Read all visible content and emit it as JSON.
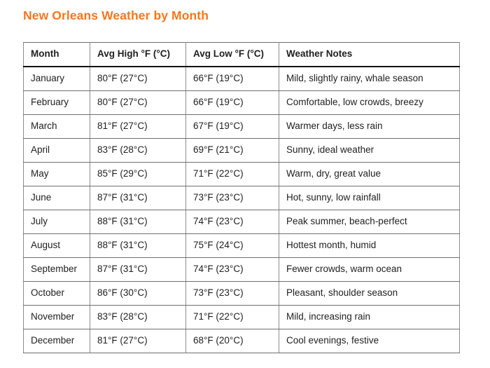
{
  "page": {
    "title": "New Orleans Weather by Month",
    "title_color": "#f8761d"
  },
  "table": {
    "headers": [
      "Month",
      "Avg High °F (°C)",
      "Avg Low °F (°C)",
      "Weather Notes"
    ],
    "rows": [
      {
        "month": "January",
        "avg_high": "80°F (27°C)",
        "avg_low": "66°F (19°C)",
        "notes": "Mild, slightly rainy, whale season"
      },
      {
        "month": "February",
        "avg_high": "80°F (27°C)",
        "avg_low": "66°F (19°C)",
        "notes": "Comfortable, low crowds, breezy"
      },
      {
        "month": "March",
        "avg_high": "81°F (27°C)",
        "avg_low": "67°F (19°C)",
        "notes": "Warmer days, less rain"
      },
      {
        "month": "April",
        "avg_high": "83°F (28°C)",
        "avg_low": "69°F (21°C)",
        "notes": "Sunny, ideal weather"
      },
      {
        "month": "May",
        "avg_high": "85°F (29°C)",
        "avg_low": "71°F (22°C)",
        "notes": "Warm, dry, great value"
      },
      {
        "month": "June",
        "avg_high": "87°F (31°C)",
        "avg_low": "73°F (23°C)",
        "notes": "Hot, sunny, low rainfall"
      },
      {
        "month": "July",
        "avg_high": "88°F (31°C)",
        "avg_low": "74°F (23°C)",
        "notes": "Peak summer, beach-perfect"
      },
      {
        "month": "August",
        "avg_high": "88°F (31°C)",
        "avg_low": "75°F (24°C)",
        "notes": "Hottest month, humid"
      },
      {
        "month": "September",
        "avg_high": "87°F (31°C)",
        "avg_low": "74°F (23°C)",
        "notes": "Fewer crowds, warm ocean"
      },
      {
        "month": "October",
        "avg_high": "86°F (30°C)",
        "avg_low": "73°F (23°C)",
        "notes": "Pleasant, shoulder season"
      },
      {
        "month": "November",
        "avg_high": "83°F (28°C)",
        "avg_low": "71°F (22°C)",
        "notes": "Mild, increasing rain"
      },
      {
        "month": "December",
        "avg_high": "81°F (27°C)",
        "avg_low": "68°F (20°C)",
        "notes": "Cool evenings, festive"
      }
    ]
  }
}
